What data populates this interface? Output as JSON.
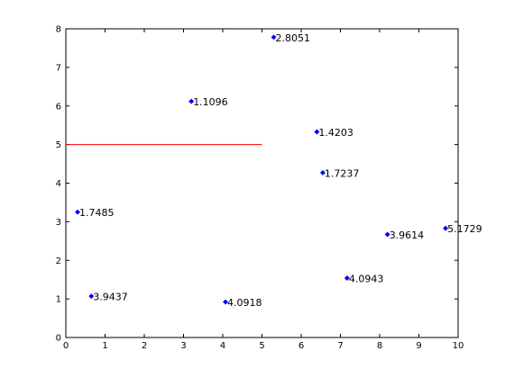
{
  "chart_data": {
    "type": "scatter",
    "title": "",
    "xlabel": "",
    "ylabel": "",
    "xlim": [
      0,
      10
    ],
    "ylim": [
      0,
      8
    ],
    "xticks": [
      0,
      1,
      2,
      3,
      4,
      5,
      6,
      7,
      8,
      9,
      10
    ],
    "yticks": [
      0,
      1,
      2,
      3,
      4,
      5,
      6,
      7,
      8
    ],
    "grid": false,
    "point_color": "#0000ff",
    "points": [
      {
        "x": 0.3,
        "y": 3.25,
        "label": "1.7485"
      },
      {
        "x": 0.65,
        "y": 1.07,
        "label": "3.9437"
      },
      {
        "x": 3.2,
        "y": 6.12,
        "label": "1.1096"
      },
      {
        "x": 4.07,
        "y": 0.92,
        "label": "4.0918"
      },
      {
        "x": 5.3,
        "y": 7.78,
        "label": "2.8051"
      },
      {
        "x": 6.4,
        "y": 5.33,
        "label": "1.4203"
      },
      {
        "x": 6.55,
        "y": 4.27,
        "label": "1.7237"
      },
      {
        "x": 7.17,
        "y": 1.54,
        "label": "4.0943"
      },
      {
        "x": 8.2,
        "y": 2.67,
        "label": "3.9614"
      },
      {
        "x": 9.68,
        "y": 2.83,
        "label": "5.1729"
      }
    ],
    "reference_line": {
      "x": [
        0,
        5
      ],
      "y": [
        5,
        5
      ],
      "color": "#ff0000"
    }
  }
}
